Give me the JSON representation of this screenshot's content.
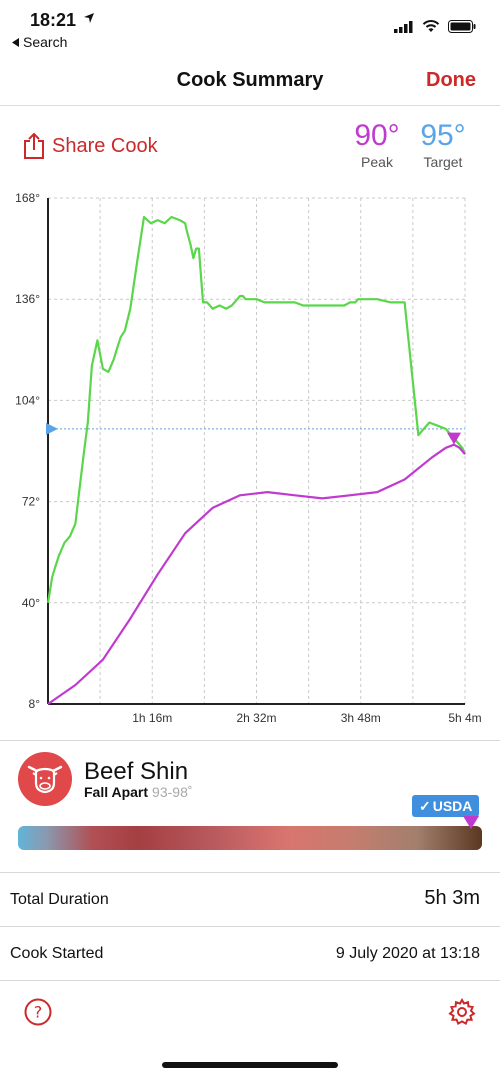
{
  "status_bar": {
    "time": "18:21",
    "back_label": "Search"
  },
  "nav": {
    "title": "Cook Summary",
    "done_label": "Done"
  },
  "share": {
    "label": "Share Cook"
  },
  "peak": {
    "value": "90°",
    "label": "Peak"
  },
  "target": {
    "value": "95°",
    "label": "Target"
  },
  "colors": {
    "accent_red": "#cc2a2a",
    "ambient_green": "#5ad64a",
    "internal_magenta": "#c03ad0",
    "target_blue": "#5aa4e8"
  },
  "chart_data": {
    "type": "line",
    "y_ticks": [
      "168°",
      "136°",
      "104°",
      "72°",
      "40°",
      "8°"
    ],
    "x_ticks": [
      "1h 16m",
      "2h 32m",
      "3h 48m",
      "5h 4m"
    ],
    "ylim": [
      8,
      168
    ],
    "xlim_minutes": [
      0,
      304
    ],
    "target": 95,
    "series": [
      {
        "color": "#5ad64a",
        "x": [
          0,
          3,
          5,
          8,
          12,
          16,
          20,
          23,
          26,
          29,
          32,
          36,
          40,
          44,
          46,
          48,
          50,
          53,
          56,
          60,
          65,
          70,
          75,
          80,
          85,
          90,
          96,
          100,
          101,
          104,
          106,
          108,
          110,
          113,
          116,
          120,
          125,
          130,
          134,
          138,
          140,
          142,
          144,
          146,
          152,
          158,
          163,
          170,
          180,
          186,
          192,
          198,
          204,
          210,
          216,
          220,
          224,
          226,
          228,
          232,
          236,
          240,
          250,
          260,
          270,
          278,
          284,
          290,
          292,
          294,
          296,
          298,
          300,
          302,
          304
        ],
        "y": [
          40,
          48,
          51,
          55,
          59,
          61,
          65,
          76,
          87,
          97,
          115,
          123,
          114,
          113,
          115,
          117,
          120,
          124,
          126,
          133,
          148,
          162,
          160,
          161,
          160,
          162,
          161,
          160,
          158,
          153,
          149,
          152,
          152,
          135,
          135,
          133,
          134,
          133,
          134,
          136,
          137,
          137,
          136,
          136,
          136,
          135,
          135,
          135,
          135,
          134,
          134,
          134,
          134,
          134,
          134,
          135,
          135,
          136,
          136,
          136,
          136,
          136,
          135,
          135,
          93,
          97,
          96,
          95,
          94,
          93,
          92,
          91,
          90,
          89,
          87
        ],
        "note": "approximate"
      },
      {
        "color": "#c03ad0",
        "x": [
          0,
          20,
          40,
          60,
          80,
          100,
          120,
          140,
          160,
          180,
          200,
          220,
          240,
          260,
          280,
          290,
          296,
          300,
          304
        ],
        "y": [
          8,
          14,
          22,
          35,
          49,
          62,
          70,
          74,
          75,
          74,
          73,
          74,
          75,
          79,
          86,
          89,
          90,
          89,
          87
        ]
      }
    ],
    "peak_marker": {
      "x": 296,
      "y": 90
    }
  },
  "meat": {
    "name": "Beef Shin",
    "level": "Fall Apart",
    "range": "93-98˚",
    "badge": "USDA",
    "doneness_fraction": 0.98
  },
  "summary": {
    "total_duration_label": "Total Duration",
    "total_duration_value": "5h 3m",
    "cook_started_label": "Cook Started",
    "cook_started_value": "9 July 2020 at 13:18"
  }
}
